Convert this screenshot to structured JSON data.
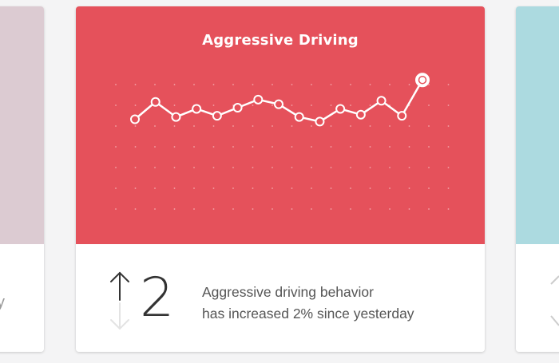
{
  "cards": {
    "left": {
      "bottom_text": "y"
    },
    "center": {
      "title": "Aggressive Driving",
      "metric_value": "2",
      "trend": "up",
      "description_line1": "Aggressive driving behavior",
      "description_line2": "has increased 2% since yesterday",
      "colors": {
        "header": "#e5515b",
        "line": "#ffffff",
        "grid_dot": "#f3a5aa"
      }
    }
  },
  "chart_data": {
    "type": "line",
    "x": [
      1,
      2,
      3,
      4,
      5,
      6,
      7,
      8,
      9,
      10,
      11,
      12,
      13,
      14,
      15
    ],
    "values": [
      30,
      45,
      32,
      39,
      33,
      40,
      47,
      43,
      32,
      28,
      39,
      34,
      46,
      33,
      64
    ],
    "highlight_last_point": true,
    "grid": "dots"
  }
}
